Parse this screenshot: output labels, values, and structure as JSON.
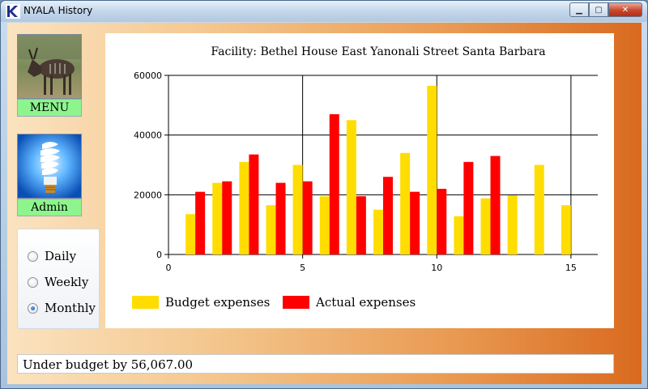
{
  "window": {
    "title": "NYALA History"
  },
  "nav": {
    "menu_label": "MENU",
    "admin_label": "Admin"
  },
  "period": {
    "options": [
      "Daily",
      "Weekly",
      "Monthly"
    ],
    "selected": "Monthly"
  },
  "status": {
    "text": "Under budget by 56,067.00"
  },
  "colors": {
    "budget": "#ffdd00",
    "actual": "#ff0000"
  },
  "chart_data": {
    "type": "bar",
    "title": "Facility: Bethel House East Yanonali Street Santa Barbara",
    "xlabel": "",
    "ylabel": "",
    "xlim": [
      0,
      16
    ],
    "ylim": [
      0,
      60000
    ],
    "xticks": [
      0,
      5,
      10,
      15
    ],
    "yticks": [
      0,
      20000,
      40000,
      60000
    ],
    "grid": true,
    "legend_position": "bottom-left",
    "x": [
      1,
      2,
      3,
      4,
      5,
      6,
      7,
      8,
      9,
      10,
      11,
      12,
      13,
      14,
      15
    ],
    "series": [
      {
        "name": "Budget expenses",
        "color": "#ffdd00",
        "values": [
          13500,
          24000,
          31000,
          16500,
          30000,
          19500,
          45000,
          15000,
          34000,
          56500,
          12800,
          18800,
          19800,
          30000,
          16500
        ]
      },
      {
        "name": "Actual expenses",
        "color": "#ff0000",
        "values": [
          21000,
          24500,
          33500,
          24000,
          24500,
          47000,
          19500,
          26000,
          21000,
          22000,
          31000,
          33000,
          null,
          null,
          null
        ]
      }
    ]
  }
}
